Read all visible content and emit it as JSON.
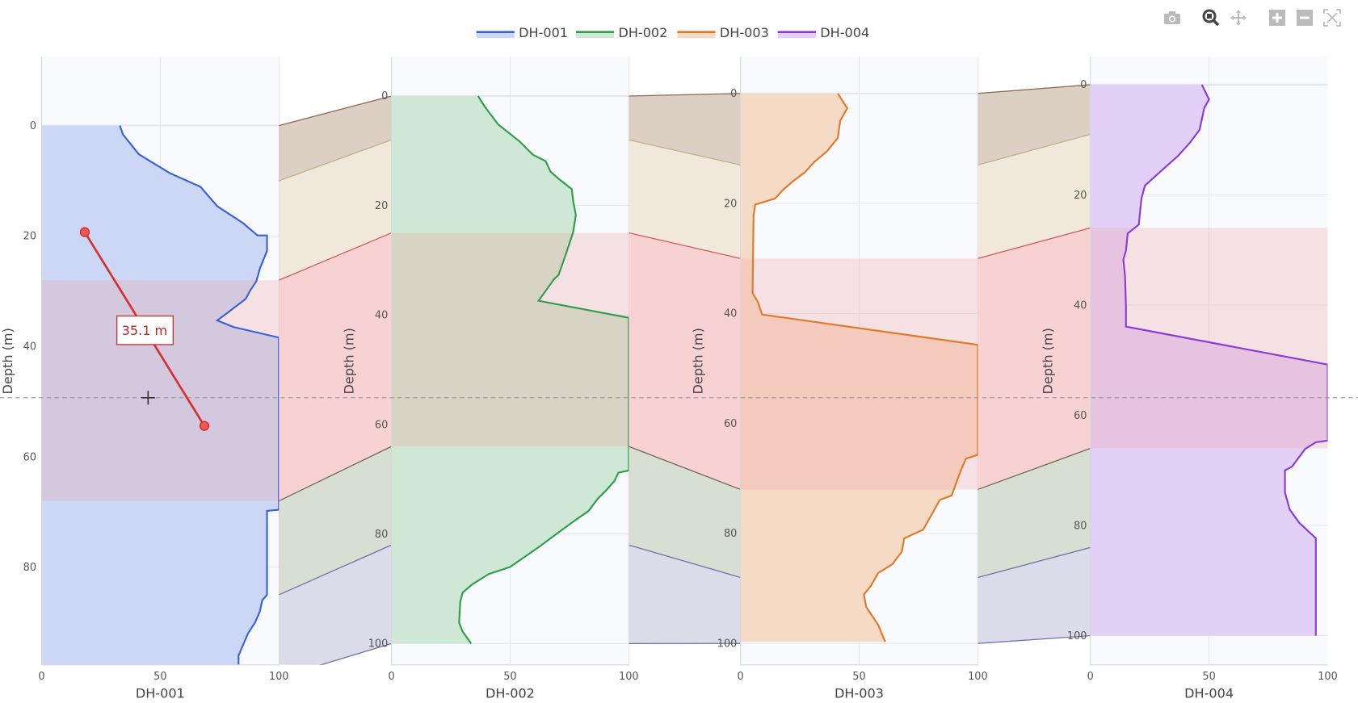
{
  "toolbar": {
    "icons": [
      "camera-icon",
      "zoom-icon",
      "pan-icon",
      "zoom-in-icon",
      "zoom-out-icon",
      "autoscale-icon"
    ],
    "active": "zoom-icon"
  },
  "chart_data": {
    "type": "line",
    "subtype": "well-log correlation (fill to zero along x, depth reversed)",
    "ylabel": "Depth (m)",
    "xlim": [
      0,
      100
    ],
    "xticks": [
      "0",
      "50",
      "100"
    ],
    "grid": true,
    "legend": {
      "placement": "top-center",
      "entries": [
        "DH-001",
        "DH-002",
        "DH-003",
        "DH-004"
      ]
    },
    "formation_colors": [
      {
        "fill": "#dccfc3",
        "line": "#8b6a4f"
      },
      {
        "fill": "#f0e8da",
        "line": "#c4ad88"
      },
      {
        "fill": "#f8d2d2",
        "line": "#d05a5a"
      },
      {
        "fill": "#d6dfd2",
        "line": "#6f6a4e"
      },
      {
        "fill": "#dcdbea",
        "line": "#6d73a6"
      }
    ],
    "highlight_formation_index": 2,
    "wells": [
      {
        "name": "DH-001",
        "color": "#3a62d6",
        "fill": "#cbd7f5",
        "ylim": [
          97.7,
          -12.4
        ],
        "yticks": [
          "0",
          "20",
          "40",
          "60",
          "80"
        ],
        "tops": [
          0,
          10,
          28,
          68,
          85,
          100
        ],
        "depth": [
          0,
          1.6,
          5.2,
          8.6,
          11.1,
          14.6,
          17.7,
          19.9,
          19.9,
          22.7,
          25.9,
          28.2,
          29.8,
          31.4,
          33.7,
          35.3,
          36.5,
          38.4,
          69.6,
          69.8,
          85,
          86,
          88,
          90,
          92,
          94,
          96,
          97.7
        ],
        "value": [
          33,
          34.3,
          41,
          54,
          67,
          74,
          85,
          91,
          95,
          95,
          92,
          90.5,
          88,
          86,
          79,
          74,
          81,
          100,
          100,
          95,
          95,
          93,
          92,
          90,
          87,
          85,
          83,
          83
        ]
      },
      {
        "name": "DH-002",
        "color": "#2f9e48",
        "fill": "#cfe8d5",
        "ylim": [
          103.9,
          -7.1
        ],
        "yticks": [
          "0",
          "20",
          "40",
          "60",
          "80",
          "100"
        ],
        "tops": [
          0,
          8,
          25,
          64,
          82,
          100
        ],
        "depth": [
          0,
          2,
          5.2,
          8.3,
          10.7,
          11.9,
          13.8,
          15.1,
          17,
          19.3,
          21.7,
          24.8,
          27.2,
          29.5,
          32.7,
          33.4,
          37.4,
          40.5,
          68.4,
          68.8,
          70.3,
          72,
          73.5,
          75.8,
          77.4,
          79.7,
          82.1,
          83.7,
          86,
          87.3,
          89.2,
          90.7,
          92.3,
          96.2,
          97.8,
          100
        ],
        "value": [
          36.5,
          39.4,
          45,
          54,
          59.5,
          65,
          67,
          70.4,
          76,
          76.6,
          77.7,
          76.6,
          74.8,
          73,
          70.4,
          68.6,
          62,
          100,
          100,
          95.6,
          94,
          90.5,
          87,
          83,
          77.7,
          70.4,
          63,
          57.7,
          50,
          41,
          34,
          30,
          29,
          28.5,
          30,
          33.6
        ]
      },
      {
        "name": "DH-003",
        "color": "#e07a28",
        "fill": "#f5dac6",
        "ylim": [
          103.9,
          -6.6
        ],
        "yticks": [
          "0",
          "20",
          "40",
          "60",
          "80",
          "100"
        ],
        "tops": [
          0,
          13,
          30,
          72,
          88,
          100
        ],
        "depth": [
          0,
          2.7,
          5,
          8.1,
          10.5,
          12.5,
          14.4,
          16,
          17.5,
          19.1,
          20.2,
          22.2,
          36.3,
          37.9,
          40.2,
          45.7,
          65.7,
          66.4,
          68.4,
          70.7,
          73.1,
          73.9,
          77,
          79.3,
          80.9,
          83.3,
          85.6,
          87.2,
          89.5,
          91.1,
          93.4,
          96.6,
          99.7
        ],
        "value": [
          41,
          45,
          42,
          41,
          36.5,
          31,
          27,
          22,
          18,
          14.6,
          6.2,
          5.5,
          5.1,
          7.3,
          9.1,
          100,
          100,
          95,
          93,
          91,
          89,
          84,
          80,
          77,
          69,
          68,
          64,
          58,
          55,
          52,
          53,
          58,
          61
        ]
      },
      {
        "name": "DH-004",
        "color": "#8b3ad9",
        "fill": "#e3d0f6",
        "ylim": [
          105.3,
          -5
        ],
        "yticks": [
          "0",
          "20",
          "40",
          "60",
          "80",
          "100"
        ],
        "tops": [
          0,
          9,
          26,
          66,
          84,
          100
        ],
        "depth": [
          0,
          2.7,
          4.2,
          8.2,
          10.5,
          12.9,
          15.2,
          18.3,
          20.7,
          25.4,
          27,
          30.1,
          31.7,
          34.8,
          40.3,
          43.9,
          50.8,
          64.6,
          64.9,
          66.1,
          69.3,
          70,
          74,
          77.1,
          79.5,
          82.3,
          100
        ],
        "value": [
          47,
          50,
          48,
          46,
          42,
          37,
          31,
          23,
          21.5,
          20.4,
          15.7,
          15,
          13.9,
          14.6,
          15,
          15,
          100,
          100,
          95,
          90.5,
          85,
          82,
          82,
          84,
          88,
          95,
          95
        ]
      }
    ],
    "measurement": {
      "well": "DH-001",
      "start": {
        "value": 18.2,
        "depth": 19.3
      },
      "end": {
        "value": 68.6,
        "depth": 54.4
      },
      "label": "35.1 m",
      "color": "#d62f2f"
    },
    "hover_depth_on_DH-001": 49.3
  }
}
